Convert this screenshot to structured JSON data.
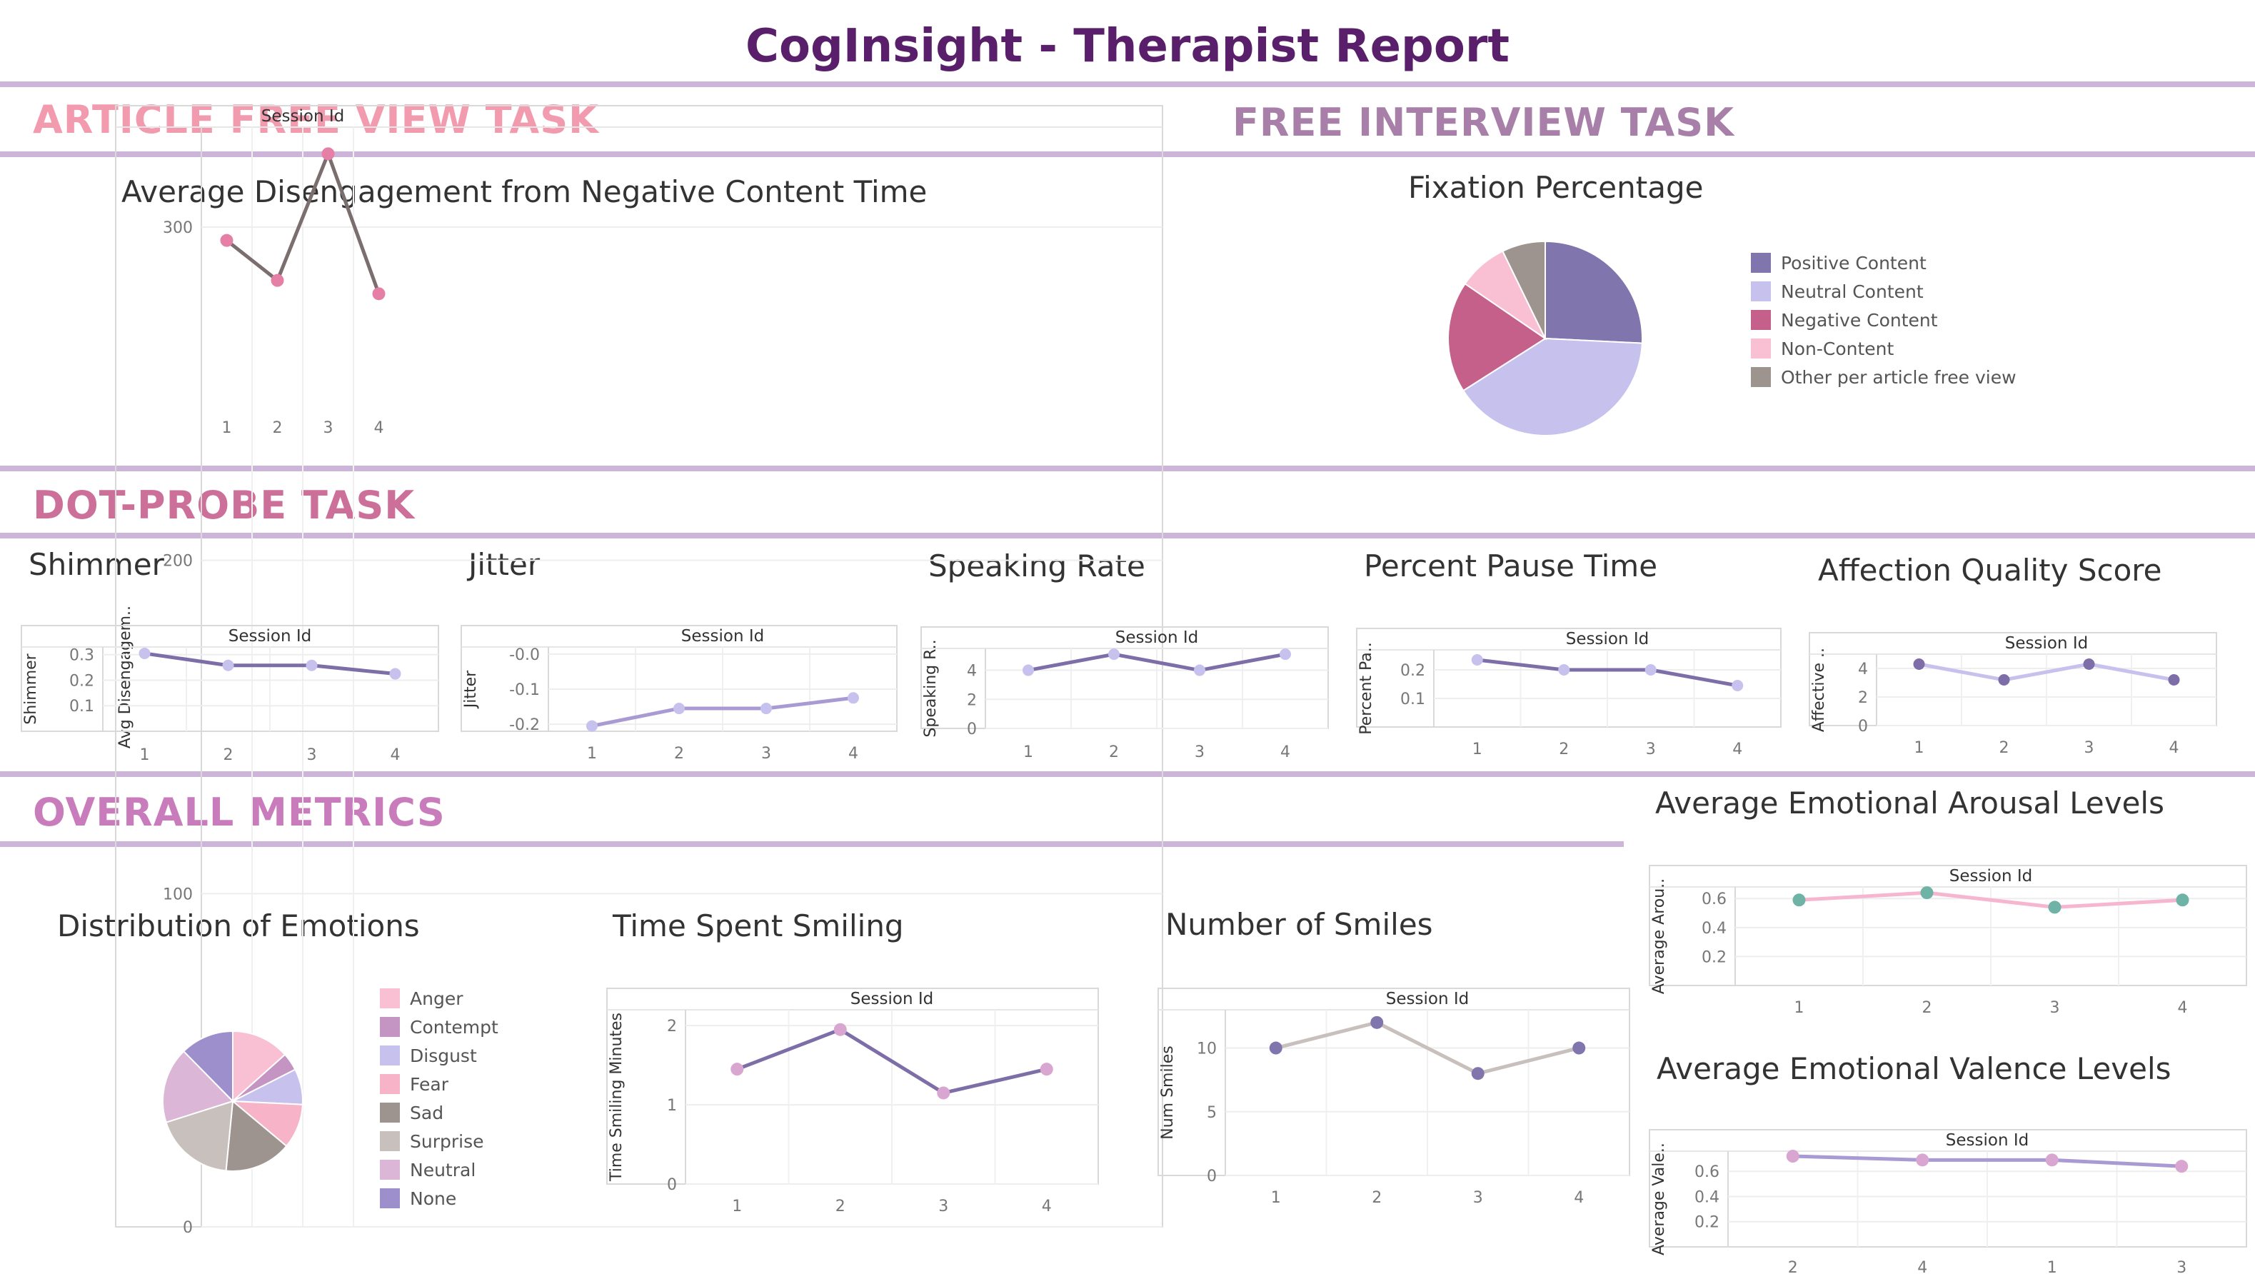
{
  "report_title": "CogInsight - Therapist Report",
  "sections": {
    "article": "ARTICLE FREE VIEW TASK",
    "interview": "FREE INTERVIEW TASK",
    "dotprobe": "DOT-PROBE TASK",
    "overall": "OVERALL METRICS"
  },
  "colors": {
    "title": "#5a1f6a",
    "rule": "#cdb4d9",
    "article": "#f29aae",
    "interview": "#a77fa8",
    "dotprobe": "#cc6f99",
    "overall": "#c97cbb"
  },
  "titles": {
    "disengagement": "Average Disengagement from Negative Content Time",
    "fixation": "Fixation Percentage",
    "shimmer": "Shimmer",
    "jitter": "Jitter",
    "speaking": "Speaking Rate",
    "pause": "Percent Pause Time",
    "affection": "Affection Quality Score",
    "arousal": "Average Emotional Arousal Levels",
    "valence": "Average Emotional Valence Levels",
    "emotions": "Distribution of Emotions",
    "smiling": "Time Spent Smiling",
    "smiles": "Number of Smiles"
  },
  "legends": {
    "fixation": [
      {
        "label": "Positive Content",
        "color": "#8175ad"
      },
      {
        "label": "Neutral Content",
        "color": "#c7c1ee"
      },
      {
        "label": "Negative Content",
        "color": "#c4608a"
      },
      {
        "label": "Non-Content",
        "color": "#f9bfd3"
      },
      {
        "label": "Other per article free view",
        "color": "#9e948f"
      }
    ],
    "emotions": [
      {
        "label": "Anger",
        "color": "#f9bfd3"
      },
      {
        "label": "Contempt",
        "color": "#c495c2"
      },
      {
        "label": "Disgust",
        "color": "#c7c1ee"
      },
      {
        "label": "Fear",
        "color": "#f7b3c8"
      },
      {
        "label": "Sad",
        "color": "#9e948f"
      },
      {
        "label": "Surprise",
        "color": "#c8c0bd"
      },
      {
        "label": "Neutral",
        "color": "#dcb6d6"
      },
      {
        "label": "None",
        "color": "#9c8fcc"
      }
    ]
  },
  "chart_data": [
    {
      "id": "disengagement",
      "type": "line",
      "title": "Average Disengagement from Negative Content Time",
      "xlabel": "Session Id",
      "ylabel": "Avg Disengagem..",
      "x": [
        "1",
        "2",
        "3",
        "4"
      ],
      "values": [
        296,
        284,
        322,
        280
      ],
      "ylim": [
        0,
        330
      ],
      "yticks": [
        "300",
        "200",
        "100",
        "0"
      ],
      "ytick_values": [
        300,
        200,
        100,
        0
      ],
      "line_color": "#7a6e6e",
      "point_color": "#e67fa6"
    },
    {
      "id": "fixation",
      "type": "pie",
      "title": "Fixation Percentage",
      "labels": [
        "Positive Content",
        "Neutral Content",
        "Negative Content",
        "Non-Content",
        "Other per article free view"
      ],
      "values": [
        25.0,
        39.0,
        18.0,
        8.0,
        7.0
      ]
    },
    {
      "id": "shimmer",
      "type": "line",
      "title": "Shimmer",
      "xlabel": "Session Id",
      "ylabel": "Shimmer",
      "x": [
        "1",
        "2",
        "3",
        "4"
      ],
      "values": [
        0.305,
        0.258,
        0.258,
        0.225
      ],
      "ylim": [
        0,
        0.33
      ],
      "yticks": [
        "0.3",
        "0.2",
        "0.1"
      ],
      "ytick_values": [
        0.3,
        0.2,
        0.1
      ],
      "line_color": "#7e6ea8",
      "point_color": "#c7c1ee"
    },
    {
      "id": "jitter",
      "type": "line",
      "title": "Jitter",
      "xlabel": "Session Id",
      "ylabel": "Jitter",
      "x": [
        "1",
        "2",
        "3",
        "4"
      ],
      "values": [
        -0.205,
        -0.155,
        -0.155,
        -0.125
      ],
      "ylim": [
        -0.22,
        0.02
      ],
      "yticks": [
        "-0.0",
        "-0.1",
        "-0.2"
      ],
      "ytick_values": [
        0.0,
        -0.1,
        -0.2
      ],
      "line_color": "#a99ad3",
      "point_color": "#c7c1ee"
    },
    {
      "id": "speaking",
      "type": "line",
      "title": "Speaking Rate",
      "xlabel": "Session Id",
      "ylabel": "Speaking R..",
      "x": [
        "1",
        "2",
        "3",
        "4"
      ],
      "values": [
        4.0,
        5.1,
        4.0,
        5.1
      ],
      "ylim": [
        0,
        5.5
      ],
      "yticks": [
        "4",
        "2",
        "0"
      ],
      "ytick_values": [
        4,
        2,
        0
      ],
      "line_color": "#7e6ea8",
      "point_color": "#c7c1ee"
    },
    {
      "id": "pause",
      "type": "line",
      "title": "Percent Pause Time",
      "xlabel": "Session Id",
      "ylabel": "Percent Pa..",
      "x": [
        "1",
        "2",
        "3",
        "4"
      ],
      "values": [
        0.235,
        0.2,
        0.2,
        0.145
      ],
      "ylim": [
        0,
        0.27
      ],
      "yticks": [
        "0.2",
        "0.1"
      ],
      "ytick_values": [
        0.2,
        0.1
      ],
      "line_color": "#7e6ea8",
      "point_color": "#c7c1ee"
    },
    {
      "id": "affection",
      "type": "line",
      "title": "Affection Quality Score",
      "xlabel": "Session Id",
      "ylabel": "Affective ..",
      "x": [
        "1",
        "2",
        "3",
        "4"
      ],
      "values": [
        4.3,
        3.2,
        4.3,
        3.2
      ],
      "ylim": [
        0,
        5
      ],
      "yticks": [
        "4",
        "2",
        "0"
      ],
      "ytick_values": [
        4,
        2,
        0
      ],
      "line_color": "#c7c1ee",
      "point_color": "#7e6ea8"
    },
    {
      "id": "arousal",
      "type": "line",
      "title": "Average Emotional Arousal Levels",
      "xlabel": "Session Id",
      "ylabel": "Average Arou..",
      "x": [
        "1",
        "2",
        "3",
        "4"
      ],
      "values": [
        0.59,
        0.64,
        0.54,
        0.59
      ],
      "ylim": [
        0,
        0.68
      ],
      "yticks": [
        "0.6",
        "0.4",
        "0.2"
      ],
      "ytick_values": [
        0.6,
        0.4,
        0.2
      ],
      "line_color": "#f6b6cf",
      "point_color": "#6fb2a6"
    },
    {
      "id": "valence",
      "type": "line",
      "title": "Average Emotional Valence Levels",
      "xlabel": "Session Id",
      "ylabel": "Average Vale..",
      "x": [
        "2",
        "4",
        "1",
        "3"
      ],
      "values": [
        0.72,
        0.69,
        0.69,
        0.64
      ],
      "ylim": [
        0,
        0.76
      ],
      "yticks": [
        "0.6",
        "0.4",
        "0.2"
      ],
      "ytick_values": [
        0.6,
        0.4,
        0.2
      ],
      "line_color": "#a99ad3",
      "point_color": "#d9a6d1"
    },
    {
      "id": "emotions",
      "type": "pie",
      "title": "Distribution of Emotions",
      "labels": [
        "Anger",
        "Contempt",
        "Disgust",
        "Fear",
        "Sad",
        "Surprise",
        "Neutral",
        "None"
      ],
      "values": [
        13,
        4,
        8,
        10,
        15,
        18,
        17,
        12
      ]
    },
    {
      "id": "smiling",
      "type": "line",
      "title": "Time Spent Smiling",
      "xlabel": "Session Id",
      "ylabel": "Time Smiling Minutes",
      "x": [
        "1",
        "2",
        "3",
        "4"
      ],
      "values": [
        1.45,
        1.95,
        1.15,
        1.45
      ],
      "ylim": [
        0,
        2.2
      ],
      "yticks": [
        "2",
        "1",
        "0"
      ],
      "ytick_values": [
        2,
        1,
        0
      ],
      "line_color": "#7e6ea8",
      "point_color": "#d9a6d1"
    },
    {
      "id": "smiles",
      "type": "line",
      "title": "Number of Smiles",
      "xlabel": "Session Id",
      "ylabel": "Num Smiles",
      "x": [
        "1",
        "2",
        "3",
        "4"
      ],
      "values": [
        10,
        12,
        8,
        10
      ],
      "ylim": [
        0,
        13
      ],
      "yticks": [
        "10",
        "5",
        "0"
      ],
      "ytick_values": [
        10,
        5,
        0
      ],
      "line_color": "#c8c0bd",
      "point_color": "#8175ad"
    }
  ]
}
